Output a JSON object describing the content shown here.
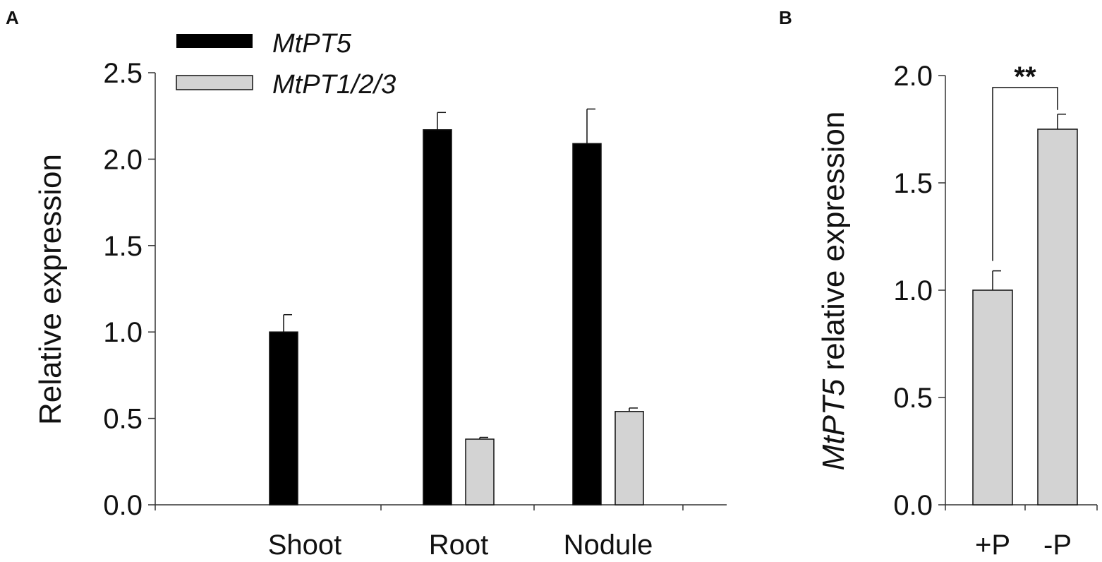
{
  "colors": {
    "MtPT5": "#000000",
    "MtPT1/2/3": "#d3d3d3",
    "axis": "#333333"
  },
  "chart_data": [
    {
      "panel": "A",
      "type": "bar",
      "categories": [
        "Shoot",
        "Root",
        "Nodule"
      ],
      "series": [
        {
          "name": "MtPT5",
          "values": [
            1.0,
            2.17,
            2.09
          ],
          "errors": [
            0.1,
            0.1,
            0.2
          ]
        },
        {
          "name": "MtPT1/2/3",
          "values": [
            0.0,
            0.38,
            0.54
          ],
          "errors": [
            0.0,
            0.01,
            0.02
          ]
        }
      ],
      "ylabel": "Relative expression",
      "xlabel": "",
      "ylim": [
        0,
        2.5
      ],
      "yticks": [
        "0.0",
        "0.5",
        "1.0",
        "1.5",
        "2.0",
        "2.5"
      ],
      "legend": "top-left",
      "grid": false
    },
    {
      "panel": "B",
      "type": "bar",
      "categories": [
        "+P",
        "-P"
      ],
      "series": [
        {
          "values": [
            1.0,
            1.75
          ],
          "errors": [
            0.09,
            0.07
          ]
        }
      ],
      "ylabel_gene": "MtPT5",
      "ylabel_rest": " relative expression",
      "xlabel": "",
      "ylim": [
        0,
        2.0
      ],
      "yticks": [
        "0.0",
        "0.5",
        "1.0",
        "1.5",
        "2.0"
      ],
      "significance": "**",
      "grid": false
    }
  ]
}
